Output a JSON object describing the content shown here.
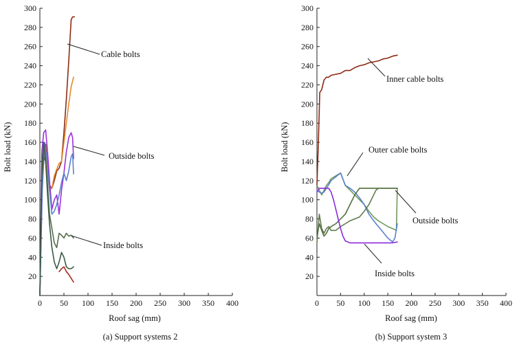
{
  "chart_data": [
    {
      "type": "line",
      "caption": "(a) Support systems 2",
      "xlabel": "Roof sag (mm)",
      "ylabel": "Bolt load (kN)",
      "xlim": [
        0,
        400
      ],
      "ylim": [
        0,
        300
      ],
      "xticks": [
        "0",
        "50",
        "100",
        "150",
        "200",
        "250",
        "300",
        "350",
        "400"
      ],
      "yticks": [
        "20",
        "40",
        "60",
        "80",
        "100",
        "120",
        "140",
        "160",
        "180",
        "200",
        "220",
        "240",
        "260",
        "280",
        "300"
      ],
      "grid": false,
      "annotations": [
        {
          "text": "Cable bolts",
          "x": 68,
          "y": 262
        },
        {
          "text": "Outside bolts",
          "x": 70,
          "y": 155
        },
        {
          "text": "Inside bolts",
          "x": 62,
          "y": 65
        }
      ],
      "series": [
        {
          "color": "#8b2a12",
          "x": [
            0,
            3,
            6,
            9,
            12,
            15,
            20,
            25,
            30,
            35,
            40,
            45,
            50,
            55,
            60,
            65,
            68,
            72
          ],
          "y": [
            0,
            80,
            135,
            152,
            158,
            140,
            115,
            112,
            120,
            130,
            133,
            140,
            170,
            205,
            245,
            288,
            291,
            291
          ]
        },
        {
          "color": "#e08a2e",
          "x": [
            0,
            5,
            10,
            15,
            20,
            25,
            30,
            35,
            40,
            45,
            50,
            55,
            60,
            65,
            70
          ],
          "y": [
            0,
            120,
            155,
            130,
            110,
            112,
            125,
            132,
            138,
            140,
            160,
            180,
            200,
            218,
            228
          ]
        },
        {
          "color": "#9b30d9",
          "x": [
            0,
            4,
            8,
            12,
            16,
            20,
            25,
            30,
            35,
            40,
            45,
            50,
            55,
            60,
            65,
            68,
            70
          ],
          "y": [
            0,
            150,
            170,
            173,
            150,
            120,
            90,
            100,
            105,
            85,
            110,
            128,
            150,
            165,
            170,
            165,
            143
          ]
        },
        {
          "color": "#5a7fcf",
          "x": [
            0,
            5,
            10,
            15,
            20,
            25,
            30,
            35,
            40,
            45,
            50,
            55,
            60,
            65,
            68,
            70
          ],
          "y": [
            0,
            110,
            160,
            140,
            110,
            85,
            88,
            95,
            105,
            118,
            128,
            120,
            130,
            145,
            148,
            127
          ]
        },
        {
          "color": "#556b4a",
          "x": [
            0,
            4,
            8,
            12,
            16,
            20,
            25,
            30,
            35,
            40,
            45,
            50,
            55,
            60,
            65,
            70
          ],
          "y": [
            0,
            125,
            145,
            140,
            115,
            85,
            70,
            55,
            50,
            65,
            63,
            60,
            65,
            62,
            63,
            60
          ]
        },
        {
          "color": "#3a5a44",
          "x": [
            0,
            4,
            8,
            12,
            16,
            20,
            25,
            30,
            35,
            40,
            45,
            50,
            55,
            60,
            65,
            70
          ],
          "y": [
            0,
            130,
            160,
            140,
            105,
            75,
            50,
            35,
            28,
            35,
            45,
            40,
            30,
            28,
            28,
            30
          ]
        },
        {
          "color": "#a8281e",
          "x": [
            40,
            45,
            50,
            55,
            60,
            65,
            70
          ],
          "y": [
            25,
            28,
            30,
            25,
            22,
            18,
            14
          ]
        }
      ]
    },
    {
      "type": "line",
      "caption": "(b) Support system 3",
      "xlabel": "Roof sag (mm)",
      "ylabel": "Bolt load (kN)",
      "xlim": [
        0,
        400
      ],
      "ylim": [
        0,
        300
      ],
      "xticks": [
        "0",
        "50",
        "100",
        "150",
        "200",
        "250",
        "300",
        "350",
        "400"
      ],
      "yticks": [
        "20",
        "40",
        "60",
        "80",
        "100",
        "120",
        "140",
        "160",
        "180",
        "200",
        "220",
        "240",
        "260",
        "280",
        "300"
      ],
      "grid": false,
      "annotations": [
        {
          "text": "Inner cable bolts",
          "x": 130,
          "y": 245
        },
        {
          "text": "Outer cable bolts",
          "x": 50,
          "y": 130
        },
        {
          "text": "Outside bolts",
          "x": 150,
          "y": 110
        },
        {
          "text": "Inside bolts",
          "x": 95,
          "y": 53
        }
      ],
      "series": [
        {
          "color": "#8b2a12",
          "x": [
            0,
            3,
            6,
            10,
            15,
            20,
            25,
            30,
            40,
            50,
            60,
            70,
            80,
            90,
            100,
            110,
            120,
            130,
            140,
            150,
            160,
            170
          ],
          "y": [
            115,
            160,
            212,
            215,
            225,
            228,
            228,
            230,
            231,
            232,
            235,
            235,
            238,
            240,
            241,
            243,
            244,
            245,
            247,
            248,
            250,
            251
          ]
        },
        {
          "color": "#6f9a5a",
          "x": [
            0,
            5,
            10,
            15,
            20,
            25,
            30,
            40,
            50,
            60,
            70,
            80,
            90,
            100,
            110,
            120,
            130,
            140,
            150,
            160,
            168,
            170
          ],
          "y": [
            115,
            110,
            105,
            110,
            115,
            118,
            122,
            125,
            128,
            115,
            110,
            105,
            100,
            95,
            88,
            82,
            78,
            75,
            72,
            70,
            68,
            112
          ]
        },
        {
          "color": "#5a7fcf",
          "x": [
            0,
            5,
            10,
            15,
            20,
            25,
            30,
            40,
            50,
            60,
            70,
            80,
            90,
            100,
            110,
            120,
            130,
            140,
            150,
            160,
            165,
            170
          ],
          "y": [
            110,
            108,
            107,
            108,
            112,
            116,
            120,
            124,
            128,
            115,
            112,
            108,
            102,
            95,
            85,
            78,
            72,
            66,
            60,
            56,
            60,
            75
          ]
        },
        {
          "color": "#4f6e3c",
          "x": [
            0,
            5,
            10,
            15,
            20,
            25,
            30,
            40,
            50,
            60,
            70,
            80,
            90,
            100,
            110,
            120,
            130,
            140,
            150,
            160,
            170
          ],
          "y": [
            60,
            75,
            68,
            62,
            65,
            70,
            72,
            75,
            80,
            85,
            95,
            105,
            112,
            112,
            112,
            112,
            112,
            112,
            112,
            112,
            112
          ]
        },
        {
          "color": "#607a4e",
          "x": [
            0,
            5,
            10,
            15,
            20,
            25,
            30,
            40,
            50,
            60,
            70,
            80,
            90,
            100,
            110,
            120,
            125,
            130,
            140,
            150,
            160,
            170
          ],
          "y": [
            55,
            85,
            70,
            65,
            70,
            72,
            68,
            68,
            72,
            75,
            78,
            80,
            82,
            88,
            95,
            105,
            110,
            112,
            112,
            112,
            112,
            112
          ]
        },
        {
          "color": "#8b2ad9",
          "x": [
            0,
            5,
            10,
            15,
            20,
            25,
            30,
            35,
            40,
            45,
            50,
            55,
            60,
            70,
            80,
            100,
            120,
            140,
            160,
            170
          ],
          "y": [
            108,
            112,
            112,
            112,
            112,
            112,
            108,
            100,
            90,
            80,
            70,
            62,
            57,
            55,
            55,
            55,
            55,
            55,
            55,
            56
          ]
        }
      ]
    }
  ]
}
